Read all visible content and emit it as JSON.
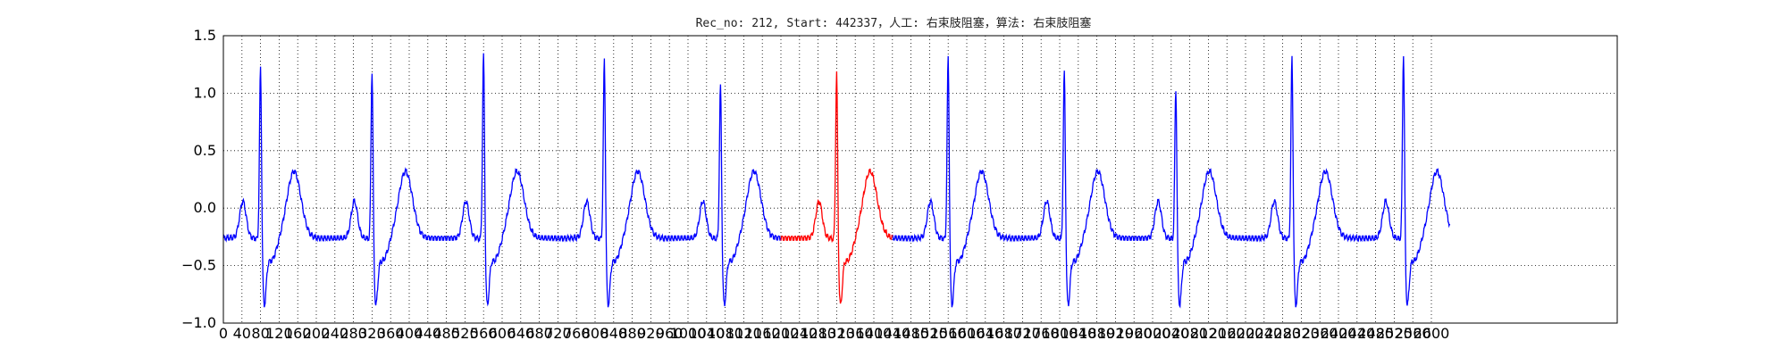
{
  "chart_data": {
    "type": "line",
    "title": "Rec_no: 212, Start: 442337，人工: 右束肢阻塞，算法: 右束肢阻塞",
    "xlabel": "",
    "ylabel": "",
    "xlim": [
      0,
      3000
    ],
    "ylim": [
      -1.0,
      1.5
    ],
    "grid": true,
    "yticks": [
      -1.0,
      -0.5,
      0.0,
      0.5,
      1.0,
      1.5
    ],
    "ytick_labels": [
      "−1.0",
      "−0.5",
      "0.0",
      "0.5",
      "1.0",
      "1.5"
    ],
    "xticks": [
      0,
      40,
      80,
      120,
      160,
      200,
      240,
      280,
      320,
      360,
      400,
      440,
      480,
      520,
      560,
      600,
      640,
      680,
      720,
      760,
      800,
      840,
      880,
      920,
      960,
      1000,
      1040,
      1080,
      1120,
      1160,
      1200,
      1240,
      1280,
      1320,
      1360,
      1400,
      1440,
      1480,
      1520,
      1560,
      1600,
      1640,
      1680,
      1720,
      1760,
      1800,
      1840,
      1880,
      1920,
      1960,
      2000,
      2040,
      2080,
      2120,
      2160,
      2200,
      2240,
      2280,
      2320,
      2360,
      2400,
      2440,
      2480,
      2520,
      2560,
      2600
    ],
    "series": [
      {
        "color": "#0000ff",
        "beats": [
          {
            "r": 80,
            "amp": 1.28
          },
          {
            "r": 320,
            "amp": 1.25
          },
          {
            "r": 560,
            "amp": 1.4
          },
          {
            "r": 820,
            "amp": 1.35
          },
          {
            "r": 1070,
            "amp": 1.13
          },
          {
            "r": 1560,
            "amp": 1.37
          },
          {
            "r": 1810,
            "amp": 1.25
          },
          {
            "r": 2050,
            "amp": 1.1
          },
          {
            "r": 2300,
            "amp": 1.37
          },
          {
            "r": 2540,
            "amp": 1.4
          }
        ],
        "x_end": 2640
      },
      {
        "color": "#ff0000",
        "x_range": [
          1200,
          1440
        ],
        "beats": [
          {
            "r": 1320,
            "amp": 1.23
          }
        ]
      }
    ]
  }
}
